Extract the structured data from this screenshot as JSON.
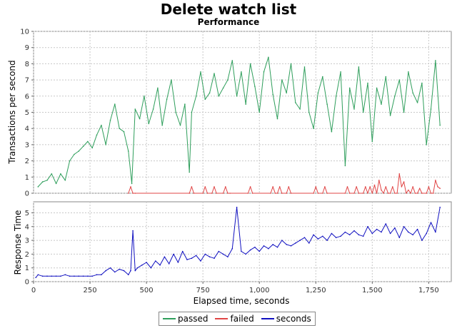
{
  "chart_data": {
    "title": "Delete watch list",
    "subtitle": "Performance",
    "type": "line",
    "xlabel": "Elapsed time, seconds",
    "xlim": [
      0,
      1850
    ],
    "x_ticks": [
      0,
      250,
      500,
      750,
      1000,
      1250,
      1500,
      1750
    ],
    "x_tick_labels": [
      "0",
      "250",
      "500",
      "750",
      "1,000",
      "1,250",
      "1,500",
      "1,750"
    ],
    "grid": true,
    "legend_position": "bottom-center",
    "top_panel": {
      "ylabel": "Transactions per second",
      "ylim": [
        0,
        10
      ],
      "y_ticks": [
        0,
        1,
        2,
        3,
        4,
        5,
        6,
        7,
        8,
        9,
        10
      ],
      "series": [
        {
          "name": "passed",
          "color": "#2e9e5b",
          "x": [
            20,
            40,
            60,
            80,
            100,
            120,
            140,
            160,
            180,
            200,
            220,
            240,
            260,
            280,
            300,
            320,
            340,
            360,
            380,
            400,
            420,
            435,
            450,
            470,
            490,
            510,
            530,
            550,
            570,
            590,
            610,
            630,
            650,
            670,
            690,
            700,
            720,
            740,
            760,
            780,
            800,
            820,
            840,
            860,
            880,
            900,
            920,
            940,
            960,
            980,
            1000,
            1020,
            1040,
            1060,
            1080,
            1100,
            1120,
            1140,
            1160,
            1180,
            1200,
            1220,
            1240,
            1260,
            1280,
            1300,
            1320,
            1340,
            1360,
            1380,
            1400,
            1420,
            1440,
            1460,
            1480,
            1500,
            1520,
            1540,
            1560,
            1580,
            1600,
            1620,
            1640,
            1660,
            1680,
            1700,
            1720,
            1740,
            1760,
            1780,
            1800
          ],
          "values": [
            0.4,
            0.7,
            0.8,
            1.2,
            0.6,
            1.2,
            0.8,
            2.0,
            2.4,
            2.6,
            2.9,
            3.2,
            2.8,
            3.6,
            4.2,
            3.0,
            4.5,
            5.5,
            4.0,
            3.8,
            2.6,
            0.6,
            5.2,
            4.6,
            6.0,
            4.3,
            5.2,
            6.5,
            4.2,
            5.8,
            7.0,
            5.0,
            4.2,
            5.5,
            1.3,
            5.0,
            6.0,
            7.5,
            5.8,
            6.2,
            7.4,
            6.0,
            6.5,
            7.0,
            8.2,
            6.0,
            7.5,
            5.5,
            8.0,
            6.6,
            5.0,
            7.5,
            8.4,
            6.1,
            4.6,
            7.0,
            6.2,
            8.0,
            5.6,
            5.2,
            7.8,
            5.0,
            4.0,
            6.2,
            7.2,
            5.5,
            3.8,
            6.0,
            7.5,
            1.7,
            6.5,
            5.2,
            7.8,
            5.0,
            6.8,
            3.2,
            6.5,
            5.5,
            7.2,
            4.8,
            6.0,
            7.0,
            5.0,
            7.5,
            6.2,
            5.6,
            6.8,
            3.0,
            5.2,
            8.2,
            4.2
          ]
        },
        {
          "name": "failed",
          "color": "#e04444",
          "x": [
            420,
            430,
            440,
            450,
            690,
            700,
            710,
            750,
            760,
            770,
            790,
            800,
            810,
            840,
            850,
            860,
            870,
            950,
            960,
            970,
            1050,
            1060,
            1070,
            1080,
            1090,
            1100,
            1120,
            1130,
            1140,
            1240,
            1250,
            1260,
            1280,
            1290,
            1300,
            1380,
            1390,
            1400,
            1420,
            1430,
            1440,
            1460,
            1470,
            1480,
            1490,
            1500,
            1510,
            1520,
            1530,
            1540,
            1550,
            1560,
            1570,
            1580,
            1590,
            1600,
            1610,
            1620,
            1630,
            1640,
            1650,
            1660,
            1670,
            1680,
            1690,
            1700,
            1710,
            1720,
            1740,
            1750,
            1760,
            1770,
            1780,
            1790,
            1800
          ],
          "values": [
            0,
            0.4,
            0,
            0,
            0,
            0.4,
            0,
            0,
            0.4,
            0,
            0,
            0.4,
            0,
            0,
            0.4,
            0,
            0,
            0,
            0.4,
            0,
            0,
            0.4,
            0,
            0,
            0.4,
            0,
            0,
            0.4,
            0,
            0,
            0.4,
            0,
            0,
            0.4,
            0,
            0,
            0.4,
            0,
            0,
            0.4,
            0,
            0,
            0.4,
            0,
            0.4,
            0,
            0.5,
            0,
            0.8,
            0.2,
            0,
            0.4,
            0,
            0,
            0.4,
            0,
            0,
            1.2,
            0.4,
            0.7,
            0,
            0.2,
            0,
            0.4,
            0,
            0,
            0.3,
            0,
            0,
            0.4,
            0,
            0,
            0.8,
            0.4,
            0.3
          ]
        }
      ]
    },
    "bottom_panel": {
      "ylabel": "Response Time",
      "ylim": [
        0,
        5.8
      ],
      "y_ticks": [
        0,
        1,
        2,
        3,
        4,
        5
      ],
      "series": [
        {
          "name": "seconds",
          "color": "#1010c0",
          "x": [
            10,
            20,
            40,
            60,
            80,
            100,
            120,
            140,
            160,
            180,
            200,
            220,
            240,
            260,
            280,
            300,
            320,
            340,
            360,
            380,
            400,
            420,
            430,
            440,
            450,
            460,
            480,
            500,
            520,
            540,
            560,
            580,
            600,
            620,
            640,
            660,
            680,
            700,
            720,
            740,
            760,
            780,
            800,
            820,
            840,
            860,
            880,
            900,
            920,
            940,
            960,
            980,
            1000,
            1020,
            1040,
            1060,
            1080,
            1100,
            1120,
            1140,
            1160,
            1180,
            1200,
            1220,
            1240,
            1260,
            1280,
            1300,
            1320,
            1340,
            1360,
            1380,
            1400,
            1420,
            1440,
            1460,
            1480,
            1500,
            1520,
            1540,
            1560,
            1580,
            1600,
            1620,
            1640,
            1660,
            1680,
            1700,
            1720,
            1740,
            1760,
            1780,
            1800
          ],
          "values": [
            0.3,
            0.5,
            0.4,
            0.4,
            0.4,
            0.4,
            0.4,
            0.5,
            0.4,
            0.4,
            0.4,
            0.4,
            0.4,
            0.4,
            0.5,
            0.5,
            0.8,
            1.0,
            0.7,
            0.9,
            0.8,
            0.5,
            0.8,
            3.7,
            0.8,
            1.0,
            1.2,
            1.4,
            1.0,
            1.5,
            1.2,
            1.8,
            1.3,
            2.0,
            1.4,
            2.2,
            1.6,
            1.7,
            1.9,
            1.5,
            2.0,
            1.8,
            1.7,
            2.2,
            2.0,
            1.8,
            2.4,
            5.4,
            2.2,
            2.0,
            2.3,
            2.5,
            2.2,
            2.6,
            2.4,
            2.7,
            2.5,
            3.0,
            2.7,
            2.6,
            2.8,
            3.0,
            3.2,
            2.8,
            3.4,
            3.1,
            3.3,
            3.0,
            3.5,
            3.2,
            3.3,
            3.6,
            3.4,
            3.7,
            3.4,
            3.3,
            4.0,
            3.5,
            3.8,
            3.6,
            4.2,
            3.5,
            3.9,
            3.2,
            4.0,
            3.6,
            3.4,
            3.8,
            3.0,
            3.5,
            4.3,
            3.6,
            5.4
          ]
        }
      ]
    }
  }
}
